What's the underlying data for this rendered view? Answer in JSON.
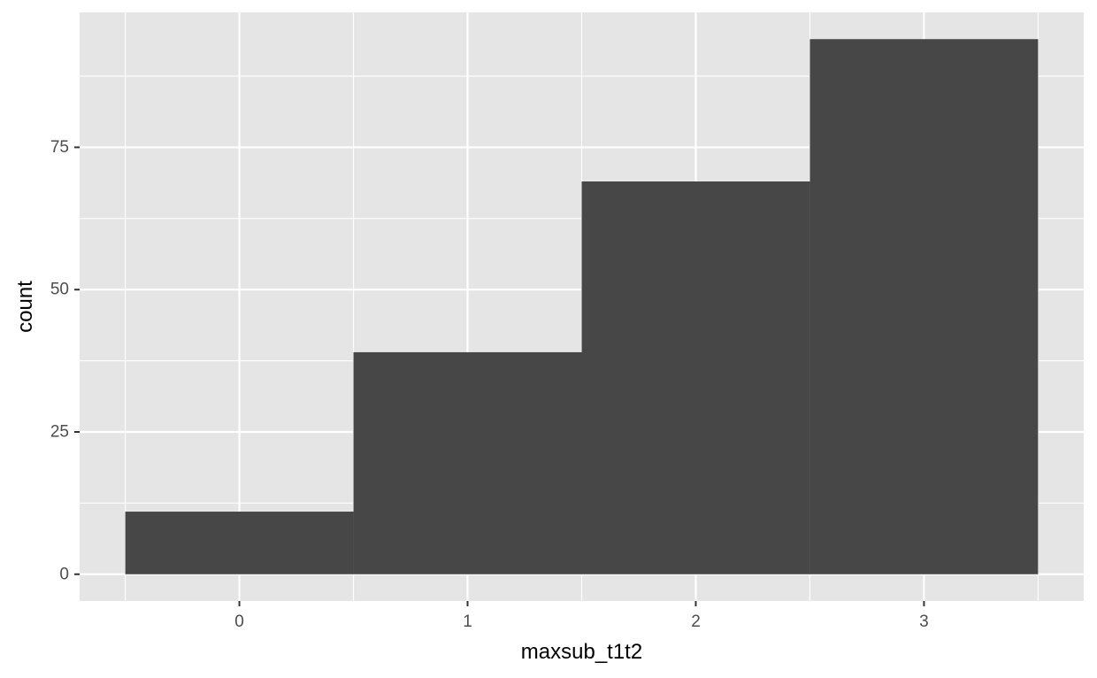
{
  "chart_data": {
    "type": "bar",
    "xlabel": "maxsub_t1t2",
    "ylabel": "count",
    "categories": [
      "0",
      "1",
      "2",
      "3"
    ],
    "x": [
      0,
      1,
      2,
      3
    ],
    "values": [
      11,
      39,
      69,
      94
    ],
    "xlim": [
      -0.7,
      3.7
    ],
    "ylim": [
      -4.7,
      98.7
    ],
    "x_ticks": [
      0,
      1,
      2,
      3
    ],
    "x_tick_labels": [
      "0",
      "1",
      "2",
      "3"
    ],
    "y_ticks": [
      0,
      25,
      50,
      75
    ],
    "y_tick_labels": [
      "0",
      "25",
      "50",
      "75"
    ],
    "grid": true,
    "legend": "none",
    "colors": {
      "panel_background": "#e5e5e5",
      "grid": "#ffffff",
      "bar_fill": "#474747",
      "tick_label": "#4d4d4d",
      "tick_mark": "#333333"
    }
  }
}
